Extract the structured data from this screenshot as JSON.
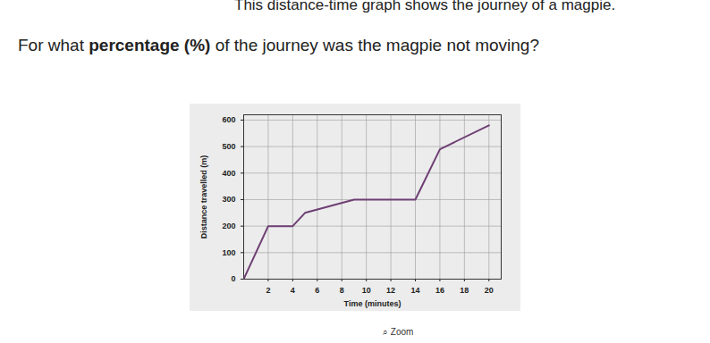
{
  "page": {
    "intro": "This distance-time graph shows the journey of a magpie.",
    "question": [
      "For what ",
      "percentage (%)",
      " of the journey was the magpie not moving?"
    ],
    "zoom": "Zoom"
  },
  "chart_data": {
    "type": "line",
    "x_label": "Time (minutes)",
    "y_label": "Distance travelled (m)",
    "x": [
      0,
      2,
      4,
      5,
      9,
      14,
      16,
      20
    ],
    "values": [
      0,
      200,
      200,
      250,
      300,
      300,
      490,
      580
    ],
    "color": "#6e3f73",
    "xlim": [
      0,
      21
    ],
    "ylim": [
      0,
      620
    ],
    "xticks": [
      2,
      4,
      6,
      8,
      10,
      12,
      14,
      16,
      18,
      20
    ],
    "yticks": [
      0,
      100,
      200,
      300,
      400,
      500,
      600
    ],
    "grid": true
  }
}
